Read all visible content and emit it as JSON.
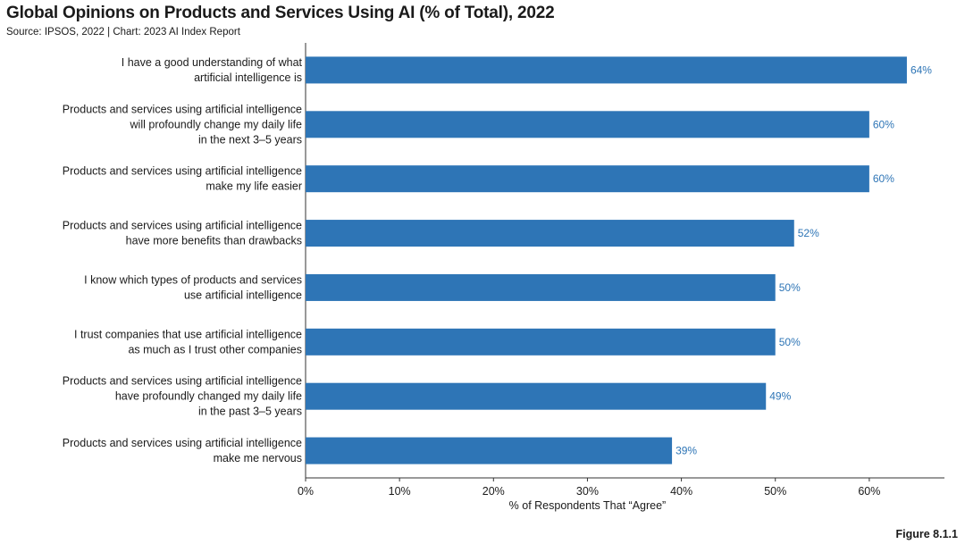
{
  "title": "Global Opinions on Products and Services Using AI (% of Total), 2022",
  "subtitle": "Source: IPSOS, 2022 | Chart: 2023 AI Index Report",
  "figure_label": "Figure 8.1.1",
  "colors": {
    "bar": "#2e75b6",
    "label": "#2e75b6",
    "axis": "#333333"
  },
  "chart_data": {
    "type": "bar",
    "orientation": "horizontal",
    "categories": [
      [
        "I have a good understanding of what",
        "artificial intelligence is"
      ],
      [
        "Products and services using artificial intelligence",
        "will profoundly change my daily life",
        "in the next 3–5 years"
      ],
      [
        "Products and services using artificial intelligence",
        "make my life easier"
      ],
      [
        "Products and services using artificial intelligence",
        "have more benefits than drawbacks"
      ],
      [
        "I know which types of products and services",
        "use artificial intelligence"
      ],
      [
        "I trust companies that use artificial intelligence",
        "as much as I trust other companies"
      ],
      [
        "Products and services using artificial intelligence",
        "have profoundly changed my daily life",
        "in the past 3–5 years"
      ],
      [
        "Products and services using artificial intelligence",
        "make me nervous"
      ]
    ],
    "values": [
      64,
      60,
      60,
      52,
      50,
      50,
      49,
      39
    ],
    "value_labels": [
      "64%",
      "60%",
      "60%",
      "52%",
      "50%",
      "50%",
      "49%",
      "39%"
    ],
    "xlim": [
      0,
      68
    ],
    "xticks": [
      0,
      10,
      20,
      30,
      40,
      50,
      60
    ],
    "xtick_labels": [
      "0%",
      "10%",
      "20%",
      "30%",
      "40%",
      "50%",
      "60%"
    ],
    "xlabel": "% of Respondents That “Agree”",
    "ylabel": "",
    "grid": false,
    "legend": "none"
  }
}
